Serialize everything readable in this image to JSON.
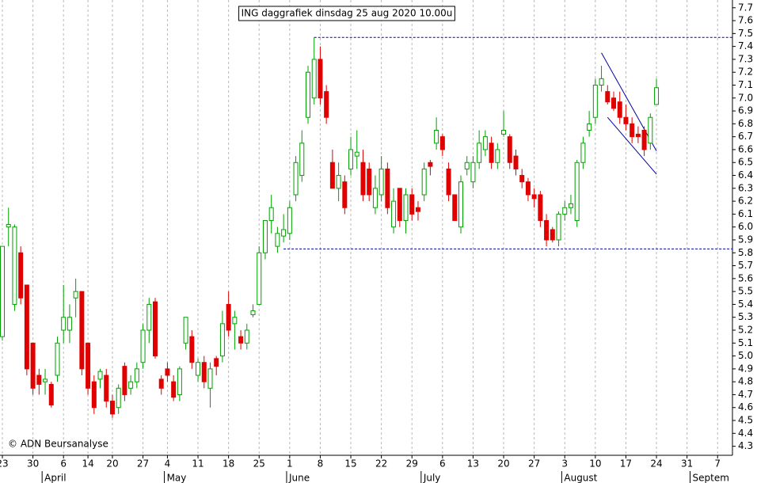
{
  "chart_data": {
    "type": "candlestick",
    "title": "ING daggrafiek dinsdag 25 aug 2020 10.00u",
    "credit": "© ADN Beursanalyse",
    "up_color": "#00a000",
    "down_color": "#e00000",
    "grid_color": "#b8b8b8",
    "line_color": "#0000a0",
    "xgrid": true,
    "categories": [
      "23",
      null,
      null,
      null,
      null,
      "30",
      null,
      null,
      null,
      null,
      "6",
      null,
      null,
      null,
      "14",
      null,
      null,
      null,
      "20",
      null,
      null,
      null,
      null,
      "27",
      null,
      null,
      null,
      "4",
      null,
      null,
      null,
      null,
      "11",
      null,
      null,
      null,
      null,
      "18",
      null,
      null,
      null,
      null,
      "25",
      null,
      null,
      null,
      null,
      "1",
      null,
      null,
      null,
      null,
      "8",
      null,
      null,
      null,
      null,
      "15",
      null,
      null,
      null,
      null,
      "22",
      null,
      null,
      null,
      null,
      "29",
      null,
      null,
      null,
      null,
      "6",
      null,
      null,
      null,
      null,
      "13",
      null,
      null,
      null,
      null,
      "20",
      null,
      null,
      null,
      null,
      "27",
      null,
      null,
      null,
      null,
      "3",
      null,
      null,
      null,
      null,
      "10",
      null,
      null,
      null,
      null,
      "17",
      null,
      null,
      null,
      null,
      "24",
      null,
      null,
      null,
      null,
      "31",
      null,
      null,
      null,
      null,
      "7"
    ],
    "months": [
      null,
      null,
      null,
      null,
      null,
      null,
      null,
      "April",
      null,
      null,
      null,
      null,
      null,
      null,
      null,
      null,
      null,
      null,
      null,
      null,
      null,
      null,
      null,
      null,
      null,
      null,
      null,
      "May",
      null,
      null,
      null,
      null,
      null,
      null,
      null,
      null,
      null,
      null,
      null,
      null,
      null,
      null,
      null,
      null,
      null,
      null,
      null,
      "June",
      null,
      null,
      null,
      null,
      null,
      null,
      null,
      null,
      null,
      null,
      null,
      null,
      null,
      null,
      null,
      null,
      null,
      null,
      null,
      null,
      null,
      "July",
      null,
      null,
      null,
      null,
      null,
      null,
      null,
      null,
      null,
      null,
      null,
      null,
      null,
      null,
      null,
      null,
      null,
      null,
      null,
      null,
      null,
      null,
      "August",
      null,
      null,
      null,
      null,
      null,
      null,
      null,
      null,
      null,
      null,
      null,
      null,
      null,
      null,
      null,
      null,
      null,
      null,
      null,
      null,
      "Septem",
      null,
      null,
      null,
      null
    ],
    "open": [
      5.15,
      6.0,
      5.4,
      5.8,
      5.55,
      5.1,
      4.85,
      4.8,
      4.78,
      4.85,
      5.2,
      5.2,
      5.45,
      5.5,
      5.1,
      4.8,
      4.82,
      4.85,
      4.65,
      4.6,
      4.92,
      4.75,
      4.8,
      4.95,
      5.2,
      5.42,
      4.82,
      4.9,
      4.8,
      4.7,
      5.1,
      5.15,
      4.85,
      4.95,
      4.75,
      4.98,
      5.0,
      5.4,
      5.25,
      5.15,
      5.1,
      5.32,
      5.4,
      5.8,
      6.05,
      5.85,
      5.93,
      5.95,
      6.25,
      6.4,
      6.85,
      7.0,
      7.3,
      7.05,
      6.5,
      6.3,
      6.35,
      6.45,
      6.55,
      6.5,
      6.45,
      6.15,
      6.25,
      6.45,
      6.0,
      6.3,
      6.05,
      6.25,
      6.15,
      6.25,
      6.5,
      6.65,
      6.7,
      6.45,
      6.25,
      6.0,
      6.45,
      6.35,
      6.5,
      6.6,
      6.65,
      6.5,
      6.72,
      6.7,
      6.55,
      6.4,
      6.35,
      6.25,
      6.25,
      6.05,
      5.98,
      5.9,
      6.1,
      6.15,
      6.05,
      6.5,
      6.75,
      6.85,
      7.1,
      7.05,
      7.0,
      6.97,
      6.85,
      6.8,
      6.72,
      6.75,
      6.65,
      6.95,
      null,
      null,
      null,
      null,
      null,
      null,
      null,
      null,
      null,
      null
    ],
    "high": [
      5.85,
      6.15,
      6.02,
      5.85,
      5.55,
      5.1,
      4.9,
      4.9,
      4.8,
      5.15,
      5.55,
      5.4,
      5.6,
      5.5,
      5.1,
      4.85,
      4.9,
      4.9,
      4.7,
      4.78,
      4.95,
      4.85,
      4.95,
      5.25,
      5.45,
      5.45,
      4.85,
      4.95,
      4.85,
      4.92,
      5.3,
      5.2,
      4.98,
      5.0,
      4.95,
      5.0,
      5.35,
      5.5,
      5.35,
      5.2,
      5.25,
      5.4,
      5.85,
      6.05,
      6.25,
      6.0,
      6.1,
      6.2,
      6.55,
      6.75,
      7.25,
      7.47,
      7.4,
      7.1,
      6.6,
      6.5,
      6.4,
      6.7,
      6.75,
      6.6,
      6.5,
      6.4,
      6.55,
      6.5,
      6.3,
      6.3,
      6.3,
      6.3,
      6.2,
      6.5,
      6.52,
      6.85,
      6.72,
      6.5,
      6.25,
      6.4,
      6.55,
      6.55,
      6.75,
      6.75,
      6.7,
      6.65,
      6.9,
      6.72,
      6.6,
      6.45,
      6.38,
      6.3,
      6.28,
      6.1,
      6.0,
      6.12,
      6.2,
      6.25,
      6.52,
      6.7,
      6.9,
      7.15,
      7.25,
      7.1,
      7.05,
      7.05,
      6.95,
      6.85,
      6.78,
      6.78,
      6.88,
      7.15,
      null,
      null,
      null,
      null,
      null,
      null,
      null,
      null,
      null,
      null
    ],
    "low": [
      5.12,
      5.85,
      5.35,
      5.4,
      4.85,
      4.7,
      4.7,
      4.7,
      4.6,
      4.8,
      5.1,
      5.1,
      5.3,
      4.85,
      4.7,
      4.55,
      4.75,
      4.6,
      4.52,
      4.55,
      4.65,
      4.7,
      4.75,
      4.9,
      5.1,
      4.98,
      4.7,
      4.8,
      4.65,
      4.65,
      5.05,
      4.9,
      4.8,
      4.75,
      4.6,
      4.85,
      4.95,
      5.15,
      5.05,
      5.05,
      5.05,
      5.3,
      5.4,
      5.75,
      5.95,
      5.8,
      5.88,
      5.9,
      6.2,
      6.35,
      6.8,
      6.95,
      6.95,
      6.8,
      6.3,
      6.2,
      6.1,
      6.4,
      6.45,
      6.2,
      6.2,
      6.1,
      6.2,
      6.1,
      5.95,
      6.0,
      5.95,
      6.05,
      6.05,
      6.2,
      6.4,
      6.6,
      6.55,
      6.2,
      6.05,
      5.95,
      6.4,
      6.3,
      6.45,
      6.55,
      6.45,
      6.45,
      6.7,
      6.45,
      6.4,
      6.3,
      6.2,
      6.15,
      6.0,
      5.85,
      5.88,
      5.85,
      6.05,
      6.1,
      6.0,
      6.45,
      6.7,
      6.8,
      7.05,
      6.95,
      6.9,
      6.8,
      6.75,
      6.65,
      6.65,
      6.55,
      6.6,
      6.95,
      null,
      null,
      null,
      null,
      null,
      null,
      null,
      null,
      null,
      null
    ],
    "close": [
      5.85,
      6.02,
      6.0,
      5.45,
      4.9,
      4.75,
      4.78,
      4.82,
      4.62,
      5.1,
      5.3,
      5.3,
      5.5,
      4.9,
      4.75,
      4.6,
      4.88,
      4.65,
      4.55,
      4.75,
      4.7,
      4.8,
      4.9,
      5.2,
      5.4,
      5.0,
      4.75,
      4.85,
      4.68,
      4.9,
      5.3,
      4.95,
      4.95,
      4.8,
      4.9,
      4.92,
      5.25,
      5.2,
      5.3,
      5.1,
      5.2,
      5.35,
      5.8,
      6.05,
      6.15,
      5.95,
      5.98,
      6.15,
      6.5,
      6.65,
      7.2,
      7.3,
      7.0,
      6.85,
      6.3,
      6.4,
      6.15,
      6.6,
      6.58,
      6.25,
      6.25,
      6.3,
      6.45,
      6.15,
      6.2,
      6.05,
      6.25,
      6.1,
      6.12,
      6.45,
      6.47,
      6.75,
      6.6,
      6.25,
      6.05,
      6.35,
      6.5,
      6.5,
      6.65,
      6.7,
      6.5,
      6.6,
      6.75,
      6.5,
      6.45,
      6.35,
      6.25,
      6.22,
      6.05,
      5.9,
      5.9,
      6.1,
      6.15,
      6.18,
      6.5,
      6.65,
      6.8,
      7.1,
      7.15,
      6.97,
      6.92,
      6.85,
      6.8,
      6.7,
      6.7,
      6.6,
      6.85,
      7.08,
      null,
      null,
      null,
      null,
      null,
      null,
      null,
      null,
      null,
      null
    ],
    "hlines": [
      {
        "value": 7.47,
        "from": 51
      },
      {
        "value": 5.83,
        "from": 46
      }
    ],
    "channel": [
      {
        "from": 98,
        "to": 107,
        "start": 7.35,
        "end": 6.59
      },
      {
        "from": 99,
        "to": 107,
        "start": 6.85,
        "end": 6.41
      }
    ],
    "ylim": [
      4.23,
      7.76
    ],
    "yticks": [
      4.3,
      4.4,
      4.5,
      4.6,
      4.7,
      4.8,
      4.9,
      {
        "value": 5,
        "label": "5.0"
      },
      5.1,
      5.2,
      5.3,
      5.4,
      5.5,
      5.6,
      5.7,
      5.8,
      5.9,
      {
        "value": 6,
        "label": "6.0"
      },
      6.1,
      6.2,
      6.3,
      6.4,
      6.5,
      6.6,
      6.7,
      6.8,
      6.9,
      {
        "value": 7,
        "label": "7.0"
      },
      7.1,
      7.2,
      7.3,
      7.4,
      7.5,
      7.6,
      7.7
    ]
  }
}
